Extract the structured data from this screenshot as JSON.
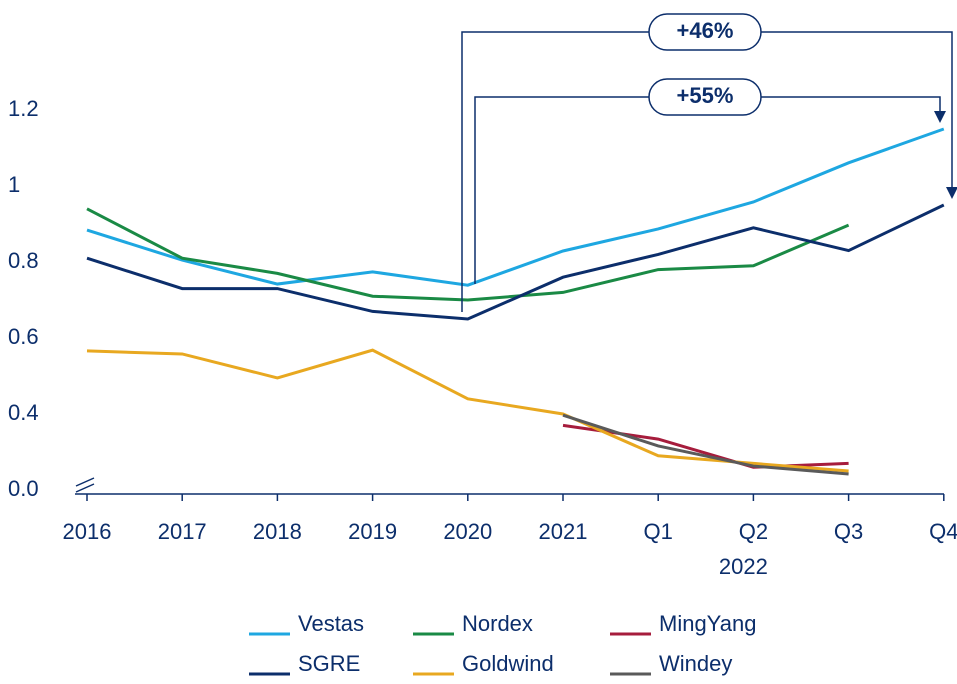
{
  "chart_data": {
    "type": "line",
    "categories": [
      "2016",
      "2017",
      "2018",
      "2019",
      "2020",
      "2021",
      "Q1",
      "Q2",
      "Q3",
      "Q4"
    ],
    "x_group_label": "2022",
    "series": [
      {
        "name": "Vestas",
        "color": "#1ea7e1",
        "values": [
          0.884,
          0.805,
          0.742,
          0.774,
          0.739,
          0.829,
          0.887,
          0.958,
          1.061,
          1.15
        ]
      },
      {
        "name": "Nordex",
        "color": "#1a8a45",
        "values": [
          0.94,
          0.81,
          0.77,
          0.71,
          0.7,
          0.72,
          0.78,
          0.79,
          0.897,
          null
        ]
      },
      {
        "name": "MingYang",
        "color": "#a61c3c",
        "values": [
          null,
          null,
          null,
          null,
          null,
          0.37,
          0.334,
          0.26,
          0.27,
          null
        ]
      },
      {
        "name": "SGRE",
        "color": "#0c2e6b",
        "values": [
          0.81,
          0.73,
          0.73,
          0.67,
          0.65,
          0.76,
          0.82,
          0.89,
          0.83,
          0.95
        ]
      },
      {
        "name": "Goldwind",
        "color": "#e8a820",
        "values": [
          0.566,
          0.558,
          0.495,
          0.568,
          0.44,
          0.4,
          0.29,
          0.27,
          0.25,
          null
        ]
      },
      {
        "name": "Windey",
        "color": "#5a5a5a",
        "values": [
          null,
          null,
          null,
          null,
          null,
          0.397,
          0.316,
          0.263,
          0.242,
          null
        ]
      }
    ],
    "ylim": [
      0,
      1.3
    ],
    "y_break": [
      0,
      0.2
    ],
    "yticks": [
      {
        "value": 0,
        "label": "0.0"
      },
      0.4,
      0.6,
      0.8,
      1.0,
      1.2
    ],
    "annotations": [
      "+46%",
      "+55%"
    ]
  }
}
